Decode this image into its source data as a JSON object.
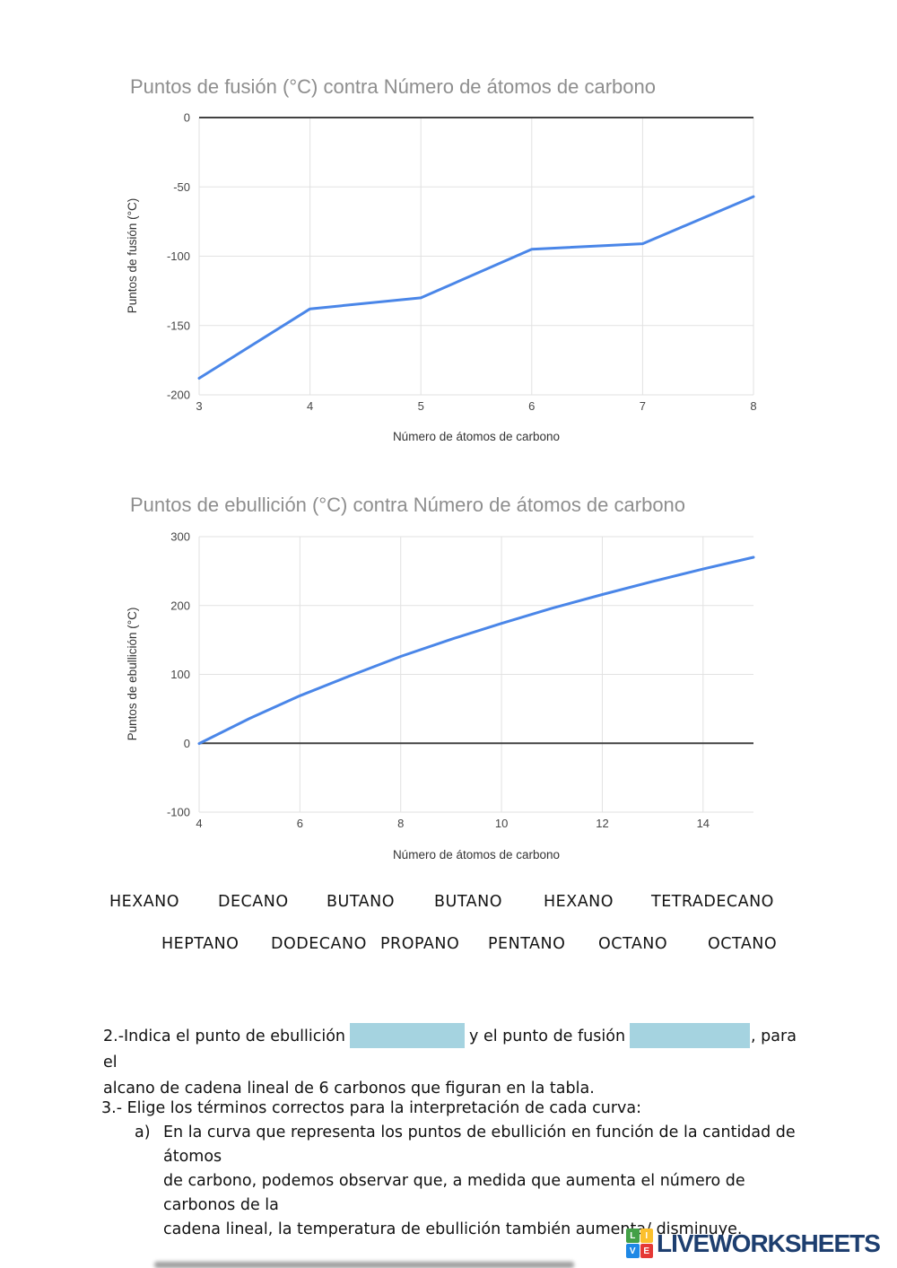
{
  "chart_data": [
    {
      "type": "line",
      "title": "Puntos de fusión (°C) contra Número de átomos de carbono",
      "xlabel": "Número de átomos de carbono",
      "ylabel": "Puntos de fusión (°C)",
      "x": [
        3,
        4,
        5,
        6,
        7,
        8
      ],
      "series": [
        {
          "name": "Puntos de fusión (°C)",
          "values": [
            -188,
            -138,
            -130,
            -95,
            -91,
            -57
          ]
        }
      ],
      "xlim": [
        3,
        8
      ],
      "ylim": [
        -200,
        0
      ],
      "xticks": [
        3,
        4,
        5,
        6,
        7,
        8
      ],
      "yticks": [
        0,
        -50,
        -100,
        -150,
        -200
      ],
      "grid": true,
      "legend": "none",
      "line_color": "#4a86e8",
      "grid_color": "#e2e2e2",
      "zero_line_color": "#424242",
      "title_color": "#8e8e8e"
    },
    {
      "type": "line",
      "title": "Puntos de ebullición (°C) contra Número de átomos de carbono",
      "xlabel": "Número de átomos de carbono",
      "ylabel": "Puntos de ebullición (°C)",
      "x": [
        4,
        5,
        6,
        7,
        8,
        9,
        10,
        11,
        12,
        13,
        14,
        15
      ],
      "series": [
        {
          "name": "Puntos de ebullición (°C)",
          "values": [
            -0.5,
            36,
            69,
            98,
            126,
            151,
            174,
            196,
            216,
            235,
            253,
            270
          ]
        }
      ],
      "xlim": [
        4,
        15
      ],
      "ylim": [
        -100,
        300
      ],
      "xticks": [
        4,
        6,
        8,
        10,
        12,
        14
      ],
      "yticks": [
        300,
        200,
        100,
        0,
        -100
      ],
      "grid": true,
      "legend": "none",
      "line_color": "#4a86e8",
      "grid_color": "#e2e2e2",
      "zero_line_color": "#424242",
      "title_color": "#8e8e8e"
    }
  ],
  "word_bank": {
    "row1": [
      "HEXANO",
      "DECANO",
      "BUTANO",
      "BUTANO",
      "HEXANO",
      "TETRADECANO"
    ],
    "row2": [
      "HEPTANO",
      "DODECANO",
      "PROPANO",
      "PENTANO",
      "OCTANO",
      "OCTANO"
    ]
  },
  "question2": {
    "part1": "2.-Indica el punto de ebullición",
    "part2": "y el punto de fusión",
    "part3": ", para el",
    "line2": "alcano  de cadena lineal de 6 carbonos que figuran en la tabla.",
    "answer_box_color": "#a5d3e0"
  },
  "question3": {
    "heading": "3.- Elige los términos correctos para la interpretación de cada curva:",
    "item_label": "a)",
    "item_lines": [
      "En la curva que representa los puntos de ebullición en función de la cantidad de átomos",
      "de carbono, podemos observar que, a medida que aumenta el número de carbonos de la",
      "cadena lineal, la temperatura de ebullición también aumenta/ disminuye."
    ]
  },
  "logo": {
    "text": "LIVEWORKSHEETS",
    "text_color": "#1d3e6f",
    "tiles": [
      {
        "letter": "L",
        "color": "#43a047"
      },
      {
        "letter": "I",
        "color": "#fbc02d"
      },
      {
        "letter": "V",
        "color": "#1e88e5"
      },
      {
        "letter": "E",
        "color": "#e53935"
      }
    ]
  }
}
